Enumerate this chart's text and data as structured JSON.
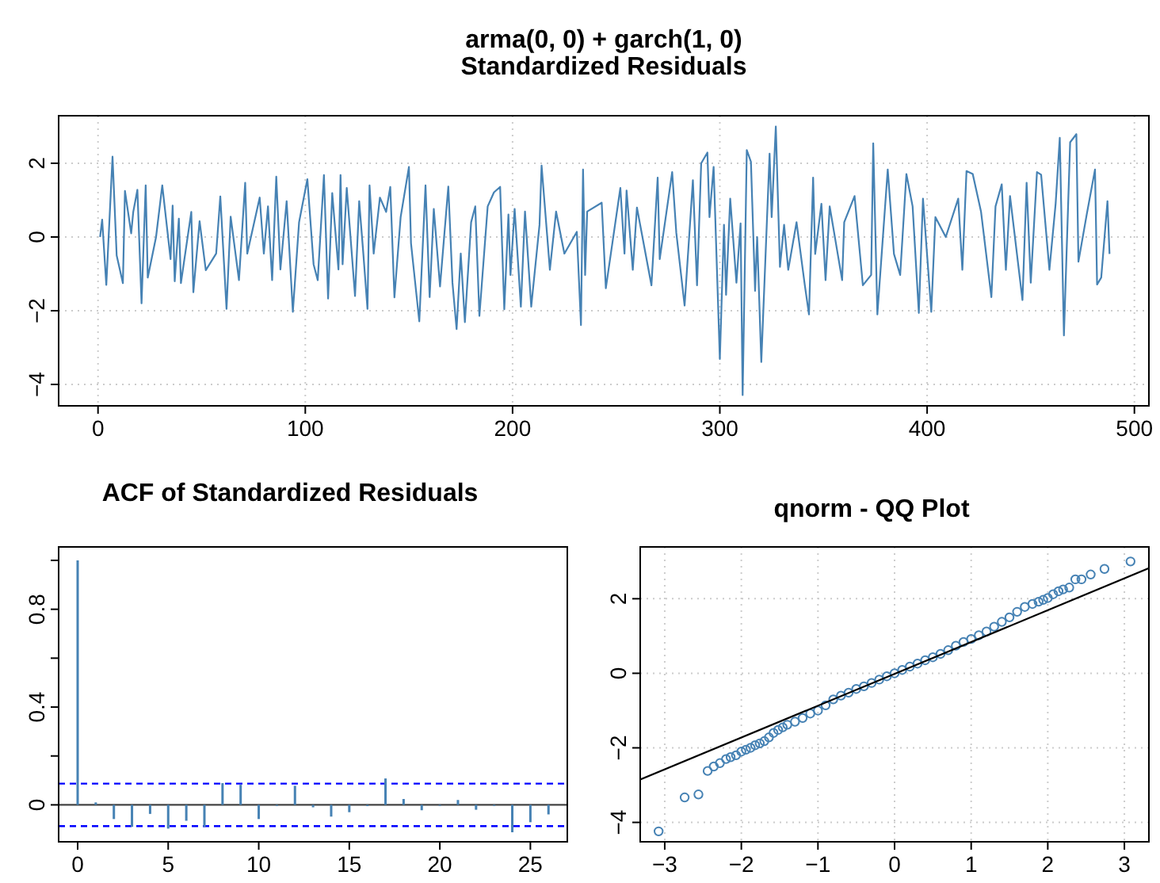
{
  "chart_data": [
    {
      "type": "line",
      "title": "arma(0, 0) + garch(1, 0)",
      "subtitle": "Standardized Residuals",
      "xlim": [
        -19,
        507
      ],
      "ylim": [
        -4.58,
        3.29
      ],
      "xticks": [
        0,
        100,
        200,
        300,
        400,
        500
      ],
      "yticks": [
        -4,
        -2,
        0,
        2
      ],
      "grid": true,
      "series": [
        {
          "color": "#4682b4",
          "x": [
            1,
            2,
            4,
            7,
            9,
            12,
            13,
            16,
            17,
            19,
            21,
            23,
            24,
            28,
            31,
            35,
            36,
            37,
            39,
            40,
            45,
            46,
            49,
            52,
            57,
            59,
            62,
            64,
            68,
            71,
            72,
            78,
            80,
            82,
            84,
            86,
            88,
            91,
            94,
            97,
            101,
            104,
            106,
            109,
            111,
            113,
            116,
            117,
            118,
            120,
            124,
            126,
            128,
            130,
            131,
            133,
            136,
            139,
            141,
            143,
            146,
            150,
            151,
            155,
            158,
            160,
            162,
            165,
            169,
            171,
            173,
            175,
            177,
            180,
            182,
            184,
            188,
            191,
            194,
            196,
            198,
            199,
            201,
            204,
            206,
            209,
            213,
            214,
            218,
            221,
            225,
            231,
            233,
            234,
            235,
            236,
            243,
            245,
            252,
            254,
            255,
            258,
            260,
            267,
            270,
            271,
            277,
            279,
            283,
            287,
            289,
            291,
            294,
            295,
            297,
            300,
            302,
            303,
            305,
            308,
            310,
            311,
            313,
            315,
            317,
            318,
            320,
            324,
            325,
            327,
            329,
            331,
            333,
            337,
            341,
            343,
            345,
            346,
            349,
            351,
            353,
            359,
            360,
            365,
            369,
            373,
            374,
            376,
            379,
            381,
            384,
            387,
            390,
            393,
            396,
            398,
            402,
            404,
            409,
            415,
            417,
            419,
            422,
            426,
            431,
            433,
            436,
            438,
            440,
            446,
            448,
            450,
            453,
            455,
            459,
            462,
            464,
            466,
            469,
            472,
            473,
            477,
            481,
            482,
            484,
            487,
            488
          ],
          "values": [
            0,
            0.47,
            -1.3,
            2.18,
            -0.5,
            -1.25,
            1.25,
            0.1,
            0.68,
            1.28,
            -1.8,
            1.4,
            -1.1,
            0,
            1.4,
            -0.6,
            0.85,
            -1.2,
            0.5,
            -1.25,
            0.68,
            -1.5,
            0.43,
            -0.9,
            -0.45,
            1.1,
            -1.95,
            0.55,
            -1.17,
            1.47,
            -0.45,
            1.07,
            -0.45,
            0.83,
            -1.17,
            1.64,
            -0.88,
            0.97,
            -2.03,
            0.4,
            1.57,
            -0.74,
            -1.17,
            1.68,
            -1.67,
            1.19,
            -0.88,
            1.68,
            -0.74,
            1.33,
            -1.6,
            0.97,
            -0.45,
            -1.95,
            1.4,
            -0.45,
            1.07,
            0.68,
            1.36,
            -1.64,
            0.54,
            1.9,
            -0.17,
            -2.29,
            1.4,
            -1.63,
            0.76,
            -1.34,
            1.37,
            -1.24,
            -2.5,
            -0.45,
            -2.31,
            0.4,
            0.83,
            -2.14,
            0.83,
            1.21,
            1.36,
            -1.96,
            0.61,
            -1.03,
            0.76,
            -1.89,
            0.69,
            -1.89,
            0.33,
            1.94,
            -0.89,
            0.69,
            -0.45,
            0.14,
            -2.39,
            1.83,
            -1.03,
            0.69,
            0.93,
            -1.39,
            1.33,
            -0.45,
            1.26,
            -0.89,
            0.8,
            -1.31,
            1.61,
            -0.6,
            1.76,
            0.11,
            -1.86,
            1.54,
            -1.31,
            2.0,
            2.29,
            0.54,
            1.9,
            -3.31,
            0.33,
            -1.57,
            1.04,
            -1.24,
            0.37,
            -4.29,
            2.36,
            2.04,
            -1.46,
            0,
            -3.39,
            2.26,
            0.54,
            3.0,
            -0.81,
            0.33,
            -0.89,
            0.4,
            -1.31,
            -2.1,
            1.61,
            -0.46,
            0.9,
            -1.17,
            0.83,
            -1.17,
            0.4,
            1.11,
            -1.31,
            -1.03,
            2.54,
            -2.1,
            0.26,
            1.83,
            -0.46,
            -1.03,
            1.71,
            0.83,
            -2.06,
            1.04,
            -2.03,
            0.54,
            0,
            1.04,
            -0.89,
            1.79,
            1.71,
            0.69,
            -1.63,
            0.83,
            1.43,
            -0.89,
            1.11,
            -1.71,
            1.47,
            -1.24,
            1.76,
            1.69,
            -0.89,
            0.9,
            2.69,
            -2.67,
            2.57,
            2.79,
            -0.67,
            0.61,
            1.83,
            -1.29,
            -1.1,
            0.97,
            -0.46
          ]
        }
      ]
    },
    {
      "type": "bar",
      "title": "ACF of Standardized Residuals",
      "xlim": [
        -1.05,
        27.04
      ],
      "ylim": [
        -0.151,
        1.055
      ],
      "xticks": [
        0,
        5,
        10,
        15,
        20,
        25
      ],
      "yticks": [
        0,
        {
          "value": 0.2,
          "label": null
        },
        0.4,
        {
          "value": 0.6,
          "label": null
        },
        0.8,
        {
          "value": 1.0,
          "label": null
        }
      ],
      "grid": false,
      "ref_lines": [
        {
          "axis": "y",
          "value": 0,
          "color": "#444444",
          "line_style": "solid"
        },
        {
          "axis": "y",
          "value": 0.087,
          "color": "#0000ff",
          "line_style": "dashed"
        },
        {
          "axis": "y",
          "value": -0.087,
          "color": "#0000ff",
          "line_style": "dashed"
        }
      ],
      "series": [
        {
          "color": "#4682b4",
          "x": [
            0,
            1,
            2,
            3,
            4,
            5,
            6,
            7,
            8,
            9,
            10,
            11,
            12,
            13,
            14,
            15,
            16,
            17,
            18,
            19,
            20,
            21,
            22,
            23,
            24,
            25,
            26
          ],
          "values": [
            1.0,
            0.01,
            -0.058,
            -0.09,
            -0.037,
            -0.097,
            -0.065,
            -0.09,
            0.089,
            0.082,
            -0.058,
            -0.004,
            0.078,
            -0.01,
            -0.048,
            -0.03,
            -0.005,
            0.108,
            0.024,
            -0.022,
            -0.004,
            0.02,
            -0.02,
            -0.004,
            -0.112,
            -0.071,
            -0.039
          ]
        }
      ]
    },
    {
      "type": "scatter",
      "title": "qnorm - QQ Plot",
      "xlim": [
        -3.32,
        3.32
      ],
      "ylim": [
        -4.52,
        3.39
      ],
      "xticks": [
        -3,
        -2,
        -1,
        0,
        1,
        2,
        3
      ],
      "yticks": [
        -4,
        -2,
        0,
        2
      ],
      "grid": true,
      "series": [
        {
          "color": "#4682b4",
          "marker": "circle",
          "x": [
            -3.08,
            -2.74,
            -2.56,
            -2.44,
            -2.36,
            -2.28,
            -2.2,
            -2.14,
            -2.07,
            -2.0,
            -1.94,
            -1.88,
            -1.82,
            -1.76,
            -1.7,
            -1.64,
            -1.58,
            -1.52,
            -1.46,
            -1.4,
            -1.3,
            -1.2,
            -1.1,
            -1.0,
            -0.9,
            -0.8,
            -0.7,
            -0.6,
            -0.5,
            -0.4,
            -0.3,
            -0.2,
            -0.1,
            0,
            0.1,
            0.2,
            0.3,
            0.4,
            0.5,
            0.6,
            0.7,
            0.8,
            0.9,
            1.0,
            1.1,
            1.2,
            1.3,
            1.4,
            1.5,
            1.6,
            1.7,
            1.8,
            1.88,
            1.94,
            2.0,
            2.07,
            2.14,
            2.2,
            2.28,
            2.36,
            2.44,
            2.56,
            2.74,
            3.08
          ],
          "values": [
            -4.24,
            -3.33,
            -3.25,
            -2.62,
            -2.5,
            -2.41,
            -2.3,
            -2.25,
            -2.2,
            -2.1,
            -2.05,
            -2.0,
            -1.93,
            -1.88,
            -1.82,
            -1.72,
            -1.6,
            -1.52,
            -1.45,
            -1.38,
            -1.3,
            -1.2,
            -1.08,
            -1.0,
            -0.86,
            -0.7,
            -0.6,
            -0.52,
            -0.42,
            -0.35,
            -0.26,
            -0.17,
            -0.08,
            0.0,
            0.09,
            0.18,
            0.26,
            0.35,
            0.43,
            0.52,
            0.62,
            0.74,
            0.84,
            0.92,
            1.02,
            1.12,
            1.25,
            1.38,
            1.5,
            1.65,
            1.78,
            1.86,
            1.92,
            1.97,
            2.02,
            2.12,
            2.2,
            2.25,
            2.3,
            2.52,
            2.52,
            2.65,
            2.8,
            3.0
          ]
        },
        {
          "type": "line",
          "color": "#000000",
          "x": [
            -3.32,
            3.32
          ],
          "values": [
            -2.85,
            2.82
          ]
        }
      ]
    }
  ]
}
